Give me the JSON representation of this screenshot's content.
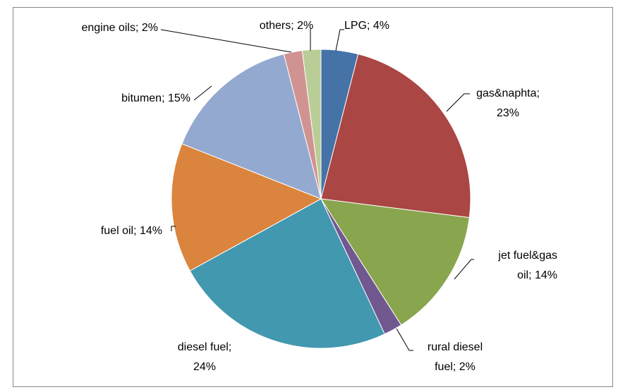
{
  "chart_data": {
    "type": "pie",
    "values": [
      4,
      23,
      14,
      2,
      24,
      14,
      15,
      2,
      2
    ],
    "value_labels": [
      "LPG; 4%",
      "gas&naphta; 23%",
      "jet fuel&gas oil; 14%",
      "rural diesel fuel; 2%",
      "diesel fuel; 24%",
      "fuel oil; 14%",
      "bitumen; 15%",
      "engine oils; 2%",
      "others; 2%"
    ],
    "colors": [
      "#4572a7",
      "#aa4643",
      "#89a54e",
      "#71588f",
      "#4198af",
      "#db843d",
      "#93a9cf",
      "#d19392",
      "#b9cd96"
    ]
  }
}
